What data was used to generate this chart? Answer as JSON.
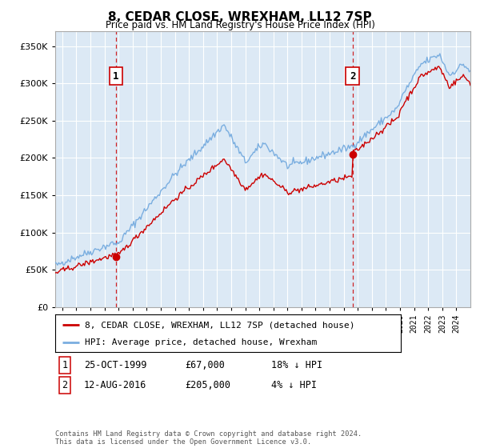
{
  "title": "8, CEDAR CLOSE, WREXHAM, LL12 7SP",
  "subtitle": "Price paid vs. HM Land Registry's House Price Index (HPI)",
  "hpi_label": "HPI: Average price, detached house, Wrexham",
  "price_label": "8, CEDAR CLOSE, WREXHAM, LL12 7SP (detached house)",
  "footer": "Contains HM Land Registry data © Crown copyright and database right 2024.\nThis data is licensed under the Open Government Licence v3.0.",
  "transaction1": {
    "label": "1",
    "date": "25-OCT-1999",
    "price": "£67,000",
    "hpi_diff": "18% ↓ HPI"
  },
  "transaction2": {
    "label": "2",
    "date": "12-AUG-2016",
    "price": "£205,000",
    "hpi_diff": "4% ↓ HPI"
  },
  "ylim": [
    0,
    370000
  ],
  "yticks": [
    0,
    50000,
    100000,
    150000,
    200000,
    250000,
    300000,
    350000
  ],
  "background_color": "#dce9f5",
  "grid_color": "#ffffff",
  "price_color": "#cc0000",
  "hpi_color": "#7aaee0",
  "vline_color": "#cc0000",
  "transaction1_year": 1999.82,
  "transaction2_year": 2016.62,
  "transaction1_price": 67000,
  "transaction2_price": 205000,
  "hpi_at_t1": 81800,
  "hpi_at_t2": 213500
}
